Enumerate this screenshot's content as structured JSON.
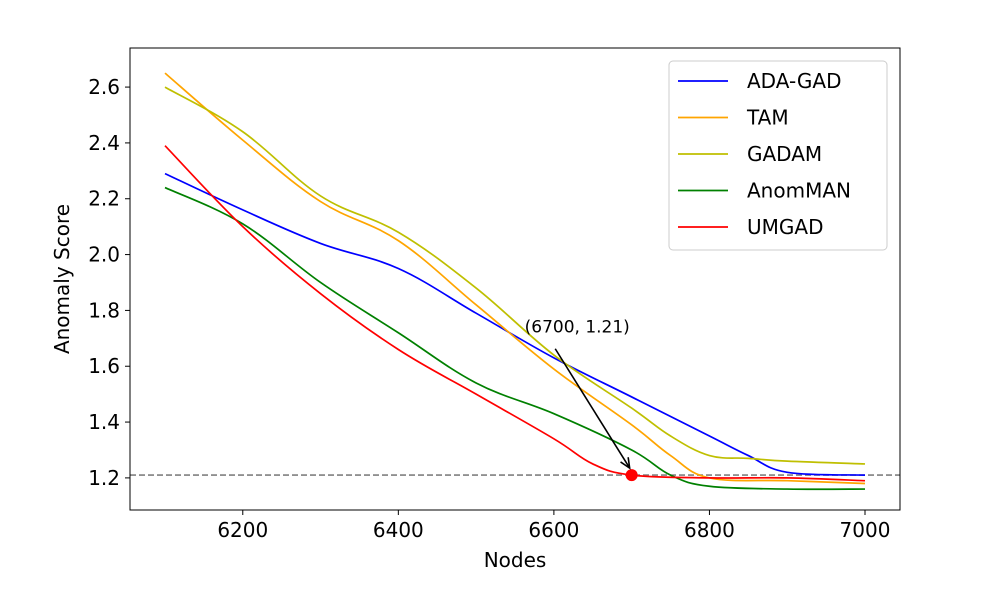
{
  "chart_data": {
    "type": "line",
    "title": "",
    "xlabel": "Nodes",
    "ylabel": "Anomaly Score",
    "xlim": [
      6055,
      7045
    ],
    "ylim": [
      1.085,
      2.74
    ],
    "xticks": [
      6200,
      6400,
      6600,
      6800,
      7000
    ],
    "xtick_labels": [
      "6200",
      "6400",
      "6600",
      "6800",
      "7000"
    ],
    "yticks": [
      1.2,
      1.4,
      1.6,
      1.8,
      2.0,
      2.2,
      2.4,
      2.6
    ],
    "ytick_labels": [
      "1.2",
      "1.4",
      "1.6",
      "1.8",
      "2.0",
      "2.2",
      "2.4",
      "2.6"
    ],
    "legend_position": "top-right",
    "series": [
      {
        "name": "ADA-GAD",
        "color": "#0000ff",
        "x": [
          6100,
          6200,
          6300,
          6400,
          6500,
          6600,
          6700,
          6800,
          6850,
          6900,
          7000
        ],
        "y": [
          2.29,
          2.16,
          2.04,
          1.95,
          1.79,
          1.63,
          1.49,
          1.35,
          1.28,
          1.22,
          1.21
        ]
      },
      {
        "name": "TAM",
        "color": "#ffa500",
        "x": [
          6100,
          6200,
          6300,
          6400,
          6500,
          6600,
          6700,
          6750,
          6800,
          6900,
          7000
        ],
        "y": [
          2.65,
          2.41,
          2.19,
          2.05,
          1.82,
          1.59,
          1.39,
          1.28,
          1.2,
          1.19,
          1.18
        ]
      },
      {
        "name": "GADAM",
        "color": "#bfbf00",
        "x": [
          6100,
          6200,
          6300,
          6400,
          6500,
          6600,
          6700,
          6750,
          6800,
          6850,
          6900,
          7000
        ],
        "y": [
          2.6,
          2.44,
          2.21,
          2.08,
          1.88,
          1.64,
          1.45,
          1.35,
          1.28,
          1.27,
          1.26,
          1.25
        ]
      },
      {
        "name": "AnomMAN",
        "color": "#008000",
        "x": [
          6100,
          6200,
          6300,
          6400,
          6500,
          6600,
          6700,
          6750,
          6800,
          6900,
          7000
        ],
        "y": [
          2.24,
          2.11,
          1.9,
          1.72,
          1.54,
          1.43,
          1.3,
          1.21,
          1.17,
          1.16,
          1.16
        ]
      },
      {
        "name": "UMGAD",
        "color": "#ff0000",
        "x": [
          6100,
          6200,
          6300,
          6400,
          6500,
          6600,
          6650,
          6700,
          6800,
          6900,
          7000
        ],
        "y": [
          2.39,
          2.1,
          1.86,
          1.66,
          1.5,
          1.34,
          1.25,
          1.21,
          1.2,
          1.2,
          1.19
        ]
      }
    ],
    "reference_line": {
      "y": 1.21,
      "color": "#808080",
      "style": "dashed"
    },
    "highlight_point": {
      "x": 6700,
      "y": 1.21,
      "color": "#ff0000"
    },
    "annotation": {
      "text": "(6700, 1.21)",
      "text_x": 6630,
      "text_y": 1.72,
      "target_x": 6700,
      "target_y": 1.21
    }
  }
}
